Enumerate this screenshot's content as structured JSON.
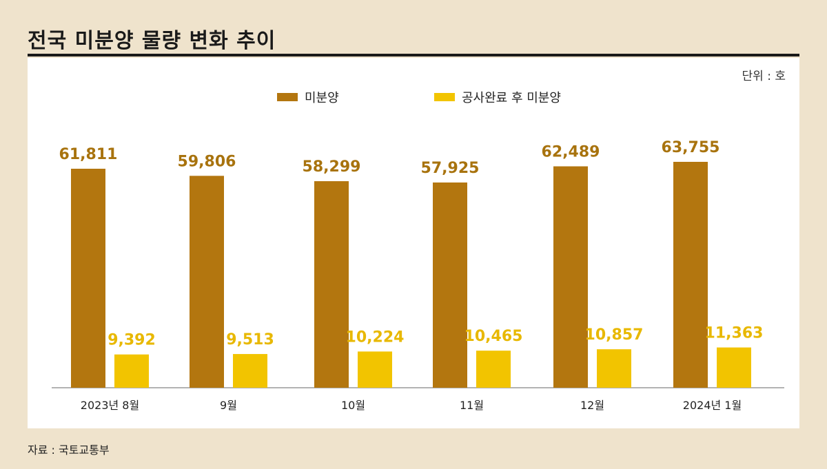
{
  "title": "전국 미분양 물량 변화 추이",
  "unit": "단위 : 호",
  "source": "자료 : 국토교통부",
  "colors": {
    "series1": "#b3760f",
    "series2": "#f2c400",
    "label1": "#a8730e",
    "label2": "#e8b800"
  },
  "chart_data": {
    "type": "bar",
    "categories": [
      "2023년 8월",
      "9월",
      "10월",
      "11월",
      "12월",
      "2024년 1월"
    ],
    "series": [
      {
        "name": "미분양",
        "values": [
          61811,
          59806,
          58299,
          57925,
          62489,
          63755
        ],
        "labels": [
          "61,811",
          "59,806",
          "58,299",
          "57,925",
          "62,489",
          "63,755"
        ]
      },
      {
        "name": "공사완료 후 미분양",
        "values": [
          9392,
          9513,
          10224,
          10465,
          10857,
          11363
        ],
        "labels": [
          "9,392",
          "9,513",
          "10,224",
          "10,465",
          "10,857",
          "11,363"
        ]
      }
    ],
    "ylim": [
      0,
      70000
    ],
    "grid": false,
    "legend_position": "top-center"
  }
}
